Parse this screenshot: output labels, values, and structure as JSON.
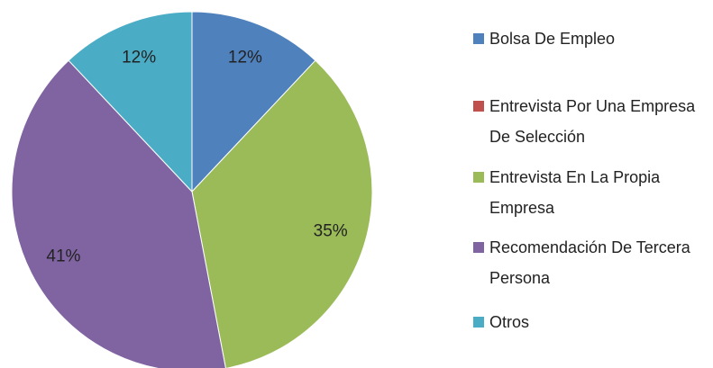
{
  "chart_data": {
    "type": "pie",
    "categories": [
      "Bolsa De Empleo",
      "Entrevista Por Una Empresa De Selección",
      "Entrevista En La Propia Empresa",
      "Recomendación De Tercera Persona",
      "Otros"
    ],
    "values": [
      12,
      0,
      35,
      41,
      12
    ],
    "value_labels": [
      "12%",
      null,
      "35%",
      "41%",
      "12%"
    ],
    "colors": [
      "#4f81bd",
      "#c0504d",
      "#9bbb59",
      "#8064a2",
      "#4bacc6"
    ],
    "legend": "right"
  }
}
